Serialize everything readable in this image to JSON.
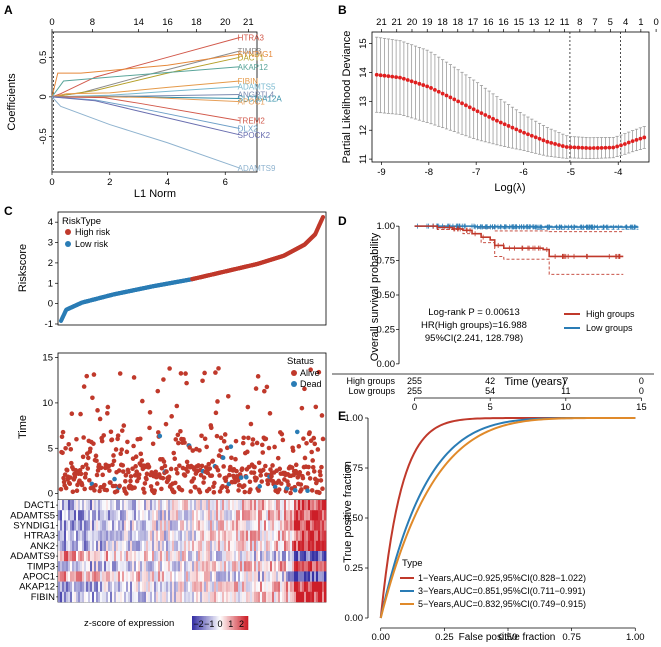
{
  "panels": {
    "A": {
      "label": "A",
      "type": "line",
      "xlabel": "L1 Norm",
      "ylabel": "Coefficients",
      "xticks": [
        0,
        2,
        4,
        6
      ],
      "yticks": [
        -0.5,
        0.0,
        0.5
      ],
      "top_ticks": [
        "0",
        "8",
        "14",
        "16",
        "18",
        "20",
        "21"
      ],
      "xlim": [
        0,
        7.1
      ],
      "ylim": [
        -0.95,
        0.82
      ],
      "series": [
        {
          "name": "HTRA3",
          "color": "#d2594b",
          "points": [
            [
              0,
              0
            ],
            [
              0.3,
              0.04
            ],
            [
              1.5,
              0.25
            ],
            [
              4,
              0.5
            ],
            [
              6.5,
              0.75
            ]
          ]
        },
        {
          "name": "TIMP3",
          "color": "#8b8b8b",
          "points": [
            [
              0,
              0
            ],
            [
              1,
              0.05
            ],
            [
              3,
              0.25
            ],
            [
              6.5,
              0.58
            ]
          ]
        },
        {
          "name": "SYNDIG1",
          "color": "#e5883a",
          "points": [
            [
              0,
              0
            ],
            [
              0.2,
              0.3
            ],
            [
              1,
              0.3
            ],
            [
              4,
              0.4
            ],
            [
              6.5,
              0.54
            ]
          ]
        },
        {
          "name": "DACT1",
          "color": "#b5a02a",
          "points": [
            [
              0,
              0
            ],
            [
              1.5,
              0.08
            ],
            [
              4,
              0.3
            ],
            [
              6.5,
              0.5
            ]
          ]
        },
        {
          "name": "AKAP12",
          "color": "#5aa59a",
          "points": [
            [
              0,
              0
            ],
            [
              0.4,
              0.2
            ],
            [
              2,
              0.25
            ],
            [
              6.5,
              0.38
            ]
          ]
        },
        {
          "name": "FIBIN",
          "color": "#e59a4a",
          "points": [
            [
              0,
              0
            ],
            [
              0.5,
              0.04
            ],
            [
              2,
              0.05
            ],
            [
              4,
              0.12
            ],
            [
              6.5,
              0.2
            ]
          ]
        },
        {
          "name": "ADAMTS5",
          "color": "#79b9cf",
          "points": [
            [
              0,
              0
            ],
            [
              2,
              0.02
            ],
            [
              4,
              0.07
            ],
            [
              6.5,
              0.13
            ]
          ]
        },
        {
          "name": "ANGPTL4",
          "color": "#7b8ab0",
          "points": [
            [
              0,
              0
            ],
            [
              3,
              0.01
            ],
            [
              6.5,
              0.03
            ]
          ]
        },
        {
          "name": "SLC16A12A",
          "color": "#2d8ca6",
          "points": [
            [
              0,
              0
            ],
            [
              3,
              0.0
            ],
            [
              6.5,
              -0.02
            ]
          ]
        },
        {
          "name": "APOC1",
          "color": "#e7a05a",
          "points": [
            [
              0,
              0
            ],
            [
              2,
              0.0
            ],
            [
              3.5,
              -0.01
            ],
            [
              6.5,
              -0.06
            ]
          ]
        },
        {
          "name": "TREM2",
          "color": "#d2594b",
          "points": [
            [
              0,
              0
            ],
            [
              1.8,
              -0.01
            ],
            [
              3,
              -0.08
            ],
            [
              6.5,
              -0.3
            ]
          ]
        },
        {
          "name": "DLX2",
          "color": "#6fa0c8",
          "points": [
            [
              0,
              0
            ],
            [
              1.5,
              -0.04
            ],
            [
              3,
              -0.14
            ],
            [
              6.5,
              -0.4
            ]
          ]
        },
        {
          "name": "SPOCK2",
          "color": "#6a6fb0",
          "points": [
            [
              0,
              0
            ],
            [
              1.5,
              -0.05
            ],
            [
              3,
              -0.18
            ],
            [
              6.5,
              -0.48
            ]
          ]
        },
        {
          "name": "ADAMTS9",
          "color": "#8fb3cf",
          "points": [
            [
              0,
              0
            ],
            [
              0.3,
              -0.12
            ],
            [
              2,
              -0.35
            ],
            [
              4,
              -0.58
            ],
            [
              6.5,
              -0.9
            ]
          ]
        }
      ]
    },
    "B": {
      "label": "B",
      "type": "scatter",
      "xlabel": "Log(λ)",
      "ylabel": "Partial Likelihood Deviance",
      "xticks": [
        -9,
        -8,
        -7,
        -6,
        -5,
        -4
      ],
      "yticks": [
        11,
        12,
        13,
        14,
        15
      ],
      "top_ticks": [
        "21",
        "21",
        "20",
        "19",
        "18",
        "18",
        "17",
        "16",
        "16",
        "15",
        "13",
        "12",
        "11",
        "8",
        "7",
        "5",
        "4",
        "1",
        "0"
      ],
      "xlim": [
        -9.2,
        -3.35
      ],
      "ylim": [
        10.9,
        15.4
      ],
      "vlines": [
        -5.02,
        -3.95
      ],
      "curve_key": [
        [
          -9.1,
          13.92
        ],
        [
          -8.6,
          13.82
        ],
        [
          -8.0,
          13.5
        ],
        [
          -7.5,
          13.1
        ],
        [
          -7.0,
          12.68
        ],
        [
          -6.5,
          12.28
        ],
        [
          -6.0,
          11.92
        ],
        [
          -5.5,
          11.6
        ],
        [
          -5.1,
          11.42
        ],
        [
          -4.6,
          11.38
        ],
        [
          -4.1,
          11.4
        ],
        [
          -3.9,
          11.5
        ],
        [
          -3.7,
          11.62
        ],
        [
          -3.45,
          11.75
        ]
      ],
      "err_key": [
        [
          -9.1,
          1.3
        ],
        [
          -8.0,
          1.25
        ],
        [
          -7.0,
          1.0
        ],
        [
          -6.0,
          0.62
        ],
        [
          -5.0,
          0.37
        ],
        [
          -4.0,
          0.35
        ],
        [
          -3.45,
          0.38
        ]
      ]
    },
    "C": {
      "label": "C",
      "risk": {
        "ylabel": "Riskscore",
        "yticks": [
          -1,
          0,
          1,
          2,
          3,
          4
        ],
        "ylim": [
          -1.05,
          4.5
        ],
        "n": 510,
        "legend_title": "RiskType",
        "legend": [
          {
            "name": "High risk",
            "color": "#c0392b"
          },
          {
            "name": "Low risk",
            "color": "#2a7cb5"
          }
        ]
      },
      "time": {
        "ylabel": "Time",
        "yticks": [
          0,
          5,
          10,
          15
        ],
        "ylim": [
          -0.7,
          15.5
        ],
        "legend_title": "Status",
        "legend": [
          {
            "name": "Alive",
            "color": "#c0392b"
          },
          {
            "name": "Dead",
            "color": "#2a7cb5"
          }
        ]
      },
      "heatmap": {
        "genes": [
          "DACT1",
          "ADAMTS5",
          "SYNDIG1",
          "HTRA3",
          "ANK2",
          "ADAMTS9",
          "TIMP3",
          "APOC1",
          "AKAP12",
          "FIBIN"
        ],
        "legend_title": "z-score of expression",
        "scale_ticks": [
          "−2",
          "−1",
          "0",
          "1",
          "2"
        ],
        "scale_range": [
          -2.6,
          2.6
        ]
      }
    },
    "D": {
      "label": "D",
      "type": "line",
      "xlabel": "Time (years)",
      "ylabel": "Overall survival probability",
      "xticks": [
        0,
        5,
        10,
        15
      ],
      "yticks": [
        "0.00",
        "0.25",
        "0.50",
        "0.75",
        "1.00"
      ],
      "xlim": [
        -0.5,
        15.5
      ],
      "ylim": [
        -0.03,
        1.03
      ],
      "annotations": [
        "Log-rank P = 0.00613",
        "HR(High groups)=16.988",
        "95%CI(2.241, 128.798)"
      ],
      "series": [
        {
          "name": "High groups",
          "color": "#c0392b",
          "steps": [
            [
              0,
              1.0
            ],
            [
              1.5,
              0.99
            ],
            [
              2.5,
              0.98
            ],
            [
              3.2,
              0.97
            ],
            [
              3.8,
              0.945
            ],
            [
              4.4,
              0.92
            ],
            [
              5.0,
              0.9
            ],
            [
              5.3,
              0.86
            ],
            [
              5.9,
              0.84
            ],
            [
              8.5,
              0.83
            ],
            [
              8.9,
              0.78
            ],
            [
              13.8,
              0.78
            ]
          ],
          "ci_upper": [
            [
              0,
              1.0
            ],
            [
              2.5,
              1.0
            ],
            [
              4.0,
              0.985
            ],
            [
              5.3,
              0.965
            ],
            [
              8.9,
              0.96
            ],
            [
              13.8,
              0.96
            ]
          ],
          "ci_lower": [
            [
              0,
              1.0
            ],
            [
              1.5,
              0.975
            ],
            [
              3.2,
              0.945
            ],
            [
              4.4,
              0.88
            ],
            [
              5.3,
              0.78
            ],
            [
              5.9,
              0.76
            ],
            [
              8.9,
              0.65
            ],
            [
              13.8,
              0.65
            ]
          ]
        },
        {
          "name": "Low groups",
          "color": "#2a7cb5",
          "steps": [
            [
              0,
              1.0
            ],
            [
              4.0,
              0.995
            ],
            [
              8.0,
              0.993
            ],
            [
              14.8,
              0.993
            ]
          ],
          "ci_upper": [
            [
              0,
              1.0
            ],
            [
              14.8,
              1.0
            ]
          ],
          "ci_lower": [
            [
              0,
              1.0
            ],
            [
              4.0,
              0.985
            ],
            [
              8.0,
              0.978
            ],
            [
              14.8,
              0.978
            ]
          ]
        }
      ],
      "risk_table": {
        "rows": [
          "High groups",
          "Low groups"
        ],
        "values": [
          [
            "255",
            "42",
            "7",
            "0"
          ],
          [
            "255",
            "54",
            "11",
            "0"
          ]
        ]
      }
    },
    "E": {
      "label": "E",
      "type": "line",
      "xlabel": "False positive fraction",
      "ylabel": "True positive fraction",
      "xticks": [
        "0.00",
        "0.25",
        "0.50",
        "0.75",
        "1.00"
      ],
      "yticks": [
        "0.00",
        "0.25",
        "0.50",
        "0.75",
        "1.00"
      ],
      "xlim": [
        -0.05,
        1.05
      ],
      "ylim": [
        -0.05,
        1.05
      ],
      "legend_title": "Type",
      "series": [
        {
          "name": "1−Years,AUC=0.925,95%CI(0.828−1.022)",
          "color": "#c0392b",
          "auc": 0.925
        },
        {
          "name": "3−Years,AUC=0.851,95%CI(0.711−0.991)",
          "color": "#2a7cb5",
          "auc": 0.851
        },
        {
          "name": "5−Years,AUC=0.832,95%CI(0.749−0.915)",
          "color": "#e08a2a",
          "auc": 0.832
        }
      ]
    }
  },
  "chart_data": [
    {
      "type": "line",
      "title": "A",
      "xlabel": "L1 Norm",
      "ylabel": "Coefficients",
      "ylim": [
        -0.95,
        0.82
      ]
    },
    {
      "type": "scatter",
      "title": "B",
      "xlabel": "Log(λ)",
      "ylabel": "Partial Likelihood Deviance",
      "ylim": [
        10.9,
        15.4
      ]
    },
    {
      "type": "scatter",
      "title": "C",
      "ylabel": "Riskscore / Time"
    },
    {
      "type": "heatmap",
      "title": "C",
      "categories": [
        "DACT1",
        "ADAMTS5",
        "SYNDIG1",
        "HTRA3",
        "ANK2",
        "ADAMTS9",
        "TIMP3",
        "APOC1",
        "AKAP12",
        "FIBIN"
      ]
    },
    {
      "type": "line",
      "title": "D",
      "xlabel": "Time (years)",
      "ylabel": "Overall survival probability"
    },
    {
      "type": "line",
      "title": "E",
      "xlabel": "False positive fraction",
      "ylabel": "True positive fraction",
      "series": [
        {
          "name": "1−Years",
          "auc": 0.925
        },
        {
          "name": "3−Years",
          "auc": 0.851
        },
        {
          "name": "5−Years",
          "auc": 0.832
        }
      ]
    }
  ]
}
